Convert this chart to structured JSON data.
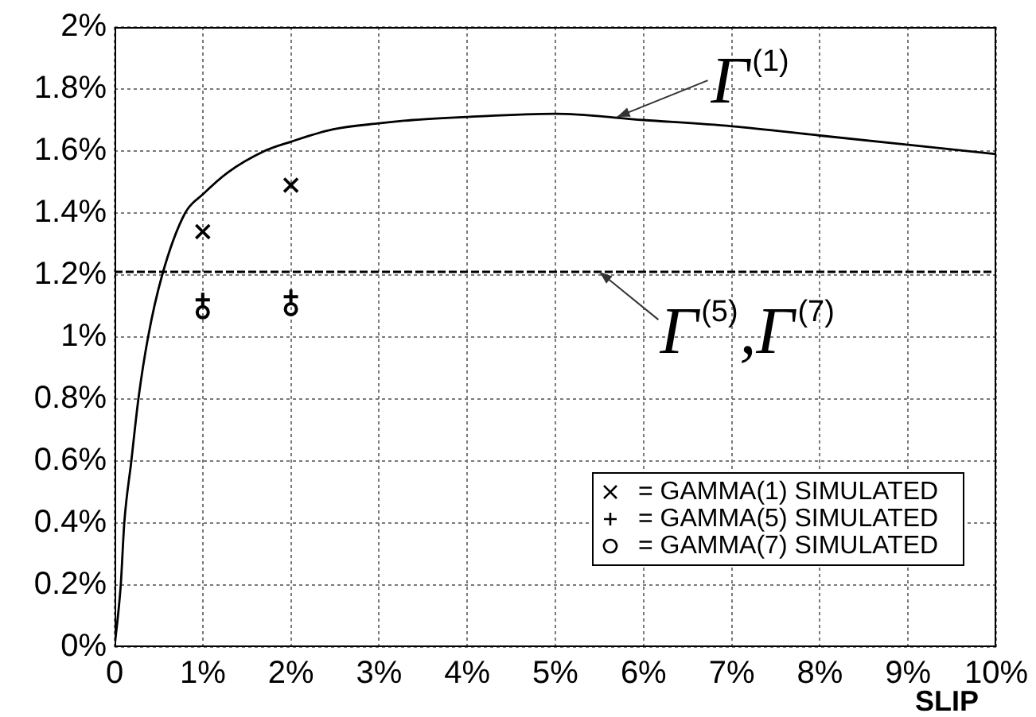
{
  "chart_data": {
    "type": "line",
    "xlabel": "SLIP",
    "xlim": [
      0,
      10
    ],
    "xticks": [
      {
        "value": 0,
        "label": "0"
      },
      {
        "value": 1,
        "label": "1%"
      },
      {
        "value": 2,
        "label": "2%"
      },
      {
        "value": 3,
        "label": "3%"
      },
      {
        "value": 4,
        "label": "4%"
      },
      {
        "value": 5,
        "label": "5%"
      },
      {
        "value": 6,
        "label": "6%"
      },
      {
        "value": 7,
        "label": "7%"
      },
      {
        "value": 8,
        "label": "8%"
      },
      {
        "value": 9,
        "label": "9%"
      },
      {
        "value": 10,
        "label": "10%"
      }
    ],
    "ylim": [
      0,
      2
    ],
    "yticks": [
      {
        "value": 0,
        "label": "0%"
      },
      {
        "value": 0.2,
        "label": "0.2%"
      },
      {
        "value": 0.4,
        "label": "0.4%"
      },
      {
        "value": 0.6,
        "label": "0.6%"
      },
      {
        "value": 0.8,
        "label": "0.8%"
      },
      {
        "value": 1,
        "label": "1%"
      },
      {
        "value": 1.2,
        "label": "1.2%"
      },
      {
        "value": 1.4,
        "label": "1.4%"
      },
      {
        "value": 1.6,
        "label": "1.6%"
      },
      {
        "value": 1.8,
        "label": "1.8%"
      },
      {
        "value": 2,
        "label": "2%"
      }
    ],
    "grid": true,
    "legend": "bottom right",
    "series": [
      {
        "color": "#000000",
        "marker": "none",
        "x": [
          0,
          0.07,
          0.11,
          0.19,
          0.27,
          0.38,
          0.54,
          0.8,
          1,
          1.28,
          1.7,
          2,
          2.48,
          3.02,
          3.38,
          4,
          5,
          6,
          7,
          8,
          9,
          10
        ],
        "values": [
          0,
          0.2,
          0.4,
          0.6,
          0.8,
          1.0,
          1.2,
          1.4,
          1.46,
          1.53,
          1.6,
          1.63,
          1.67,
          1.69,
          1.7,
          1.71,
          1.72,
          1.7,
          1.68,
          1.65,
          1.62,
          1.59
        ]
      },
      {
        "type": "scatter",
        "name": "= GAMMA(1) SIMULATED",
        "color": "#000000",
        "marker": "x",
        "x": [
          1,
          2
        ],
        "values": [
          1.34,
          1.49
        ]
      },
      {
        "type": "scatter",
        "name": "= GAMMA(5) SIMULATED",
        "color": "#000000",
        "marker": "cross",
        "x": [
          1,
          2
        ],
        "values": [
          1.12,
          1.13
        ]
      },
      {
        "type": "scatter",
        "name": "= GAMMA(7) SIMULATED",
        "color": "#000000",
        "marker": "circle",
        "x": [
          1,
          2
        ],
        "values": [
          1.08,
          1.09
        ]
      }
    ],
    "ref_lines": [
      {
        "axis": "y",
        "value": 1.21,
        "color": "#000000",
        "line_style": "dashed"
      }
    ],
    "annotations": [
      {
        "text": "Γ$^{(1)}$",
        "x": 5.7,
        "y": 1.71
      },
      {
        "text": "Γ$^{(5)}$,Γ$^{(7)}$",
        "x": 5.5,
        "y": 1.21
      }
    ]
  }
}
